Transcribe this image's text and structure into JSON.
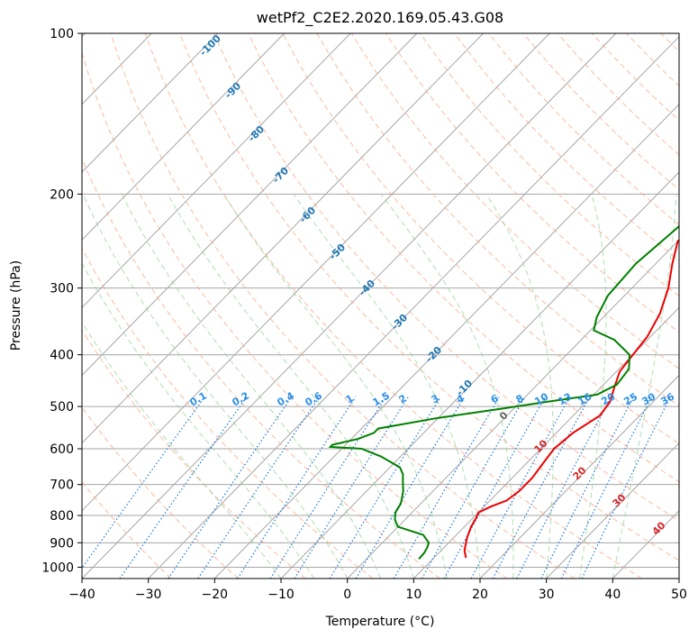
{
  "chart_data": {
    "type": "line",
    "title": "wetPf2_C2E2.2020.169.05.43.G08",
    "xlabel": "Temperature (°C)",
    "ylabel": "Pressure (hPa)",
    "xlim": [
      -40,
      50
    ],
    "ylim": [
      1050,
      100
    ],
    "y_scale": "log",
    "skew": "skew-T log-P",
    "x_ticks": [
      -40,
      -30,
      -20,
      -10,
      0,
      10,
      20,
      30,
      40,
      50
    ],
    "y_ticks": [
      100,
      200,
      300,
      400,
      500,
      600,
      700,
      800,
      900,
      1000
    ],
    "colors": {
      "temperature": "#ee0000",
      "dewpoint": "#008000",
      "isotherm_grid": "#a6a6a6",
      "dry_adiabat": "#f4a582",
      "moist_adiabat": "#8fce8f",
      "mixing_ratio": "#1f77d4",
      "moist_adiabat_label": "#d62728",
      "isotherm_label": "#1f77b4",
      "mixing_label": "#2b8fe8"
    },
    "series": [
      {
        "name": "Temperature",
        "points": [
          [
            14.8,
            960
          ],
          [
            13.5,
            930
          ],
          [
            12,
            880
          ],
          [
            11,
            840
          ],
          [
            10.5,
            810
          ],
          [
            10,
            790
          ],
          [
            11,
            770
          ],
          [
            12.5,
            750
          ],
          [
            13,
            720
          ],
          [
            13,
            680
          ],
          [
            12.5,
            640
          ],
          [
            12,
            600
          ],
          [
            12.5,
            560
          ],
          [
            14,
            520
          ],
          [
            13.5,
            490
          ],
          [
            12,
            460
          ],
          [
            10.5,
            430
          ],
          [
            10,
            400
          ],
          [
            9.5,
            370
          ],
          [
            8,
            335
          ],
          [
            5.5,
            300
          ],
          [
            2.5,
            270
          ],
          [
            0,
            245
          ],
          [
            1,
            220
          ],
          [
            2.5,
            200
          ],
          [
            3.5,
            180
          ],
          [
            4.5,
            165
          ],
          [
            6.5,
            155
          ],
          [
            10,
            145
          ],
          [
            13,
            135
          ],
          [
            14.5,
            128
          ],
          [
            15,
            120
          ],
          [
            16,
            115
          ],
          [
            17,
            110
          ],
          [
            17.5,
            105
          ],
          [
            18,
            100
          ]
        ]
      },
      {
        "name": "Dewpoint",
        "points": [
          [
            7.9,
            965
          ],
          [
            7.8,
            940
          ],
          [
            7.5,
            920
          ],
          [
            7,
            900
          ],
          [
            5,
            870
          ],
          [
            0,
            840
          ],
          [
            -1.5,
            815
          ],
          [
            -2.5,
            790
          ],
          [
            -3,
            760
          ],
          [
            -4.5,
            720
          ],
          [
            -6,
            690
          ],
          [
            -7,
            670
          ],
          [
            -8.5,
            650
          ],
          [
            -13,
            620
          ],
          [
            -17,
            600
          ],
          [
            -22,
            595
          ],
          [
            -22,
            590
          ],
          [
            -19,
            575
          ],
          [
            -17.5,
            560
          ],
          [
            -17.5,
            550
          ],
          [
            -10,
            525
          ],
          [
            -2,
            505
          ],
          [
            4,
            490
          ],
          [
            10.5,
            475
          ],
          [
            12,
            455
          ],
          [
            11.5,
            425
          ],
          [
            9.5,
            400
          ],
          [
            5,
            375
          ],
          [
            0.5,
            360
          ],
          [
            -1,
            340
          ],
          [
            -2.5,
            310
          ],
          [
            -3,
            270
          ],
          [
            -2,
            230
          ],
          [
            -2,
            200
          ],
          [
            -1,
            180
          ],
          [
            -0.5,
            165
          ],
          [
            -4,
            155
          ],
          [
            -12,
            142
          ],
          [
            -18,
            135
          ],
          [
            -20,
            131
          ],
          [
            -20,
            126
          ],
          [
            -13,
            123
          ],
          [
            -8,
            121
          ],
          [
            -7,
            118
          ],
          [
            -10,
            113
          ],
          [
            -10,
            109
          ],
          [
            -7,
            104
          ],
          [
            -4,
            100
          ]
        ]
      }
    ],
    "isotherm_labels": [
      "-100",
      "-90",
      "-80",
      "-70",
      "-60",
      "-50",
      "-40",
      "-30",
      "-20",
      "-10",
      "0"
    ],
    "mixing_ratio_labels": [
      "0.1",
      "0.2",
      "0.4",
      "0.6",
      "1",
      "1.5",
      "2",
      "3",
      "4",
      "6",
      "8",
      "10",
      "13",
      "16",
      "20",
      "25",
      "30",
      "36"
    ],
    "moist_adiabat_labels": [
      "10",
      "20",
      "30",
      "40"
    ]
  }
}
